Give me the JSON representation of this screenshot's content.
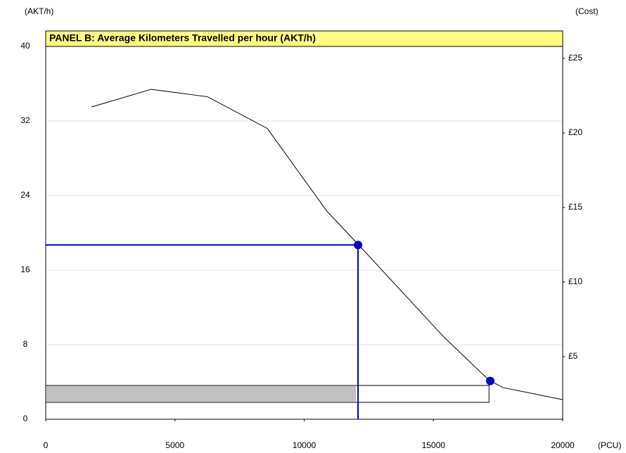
{
  "chart_data": {
    "type": "line",
    "title": "PANEL B: Average Kilometers Travelled per hour (AKT/h)",
    "y_label": "(AKT/h)",
    "y2_label": "(Cost)",
    "x_label": "(PCU)",
    "xlim": [
      0,
      20000
    ],
    "xticks": [
      0,
      5000,
      10000,
      15000,
      20000
    ],
    "ylim": [
      0,
      40
    ],
    "yticks": [
      0,
      8,
      16,
      24,
      32,
      40
    ],
    "y2lim": [
      0.8,
      25.8
    ],
    "y2ticks": [
      {
        "value": 5,
        "label": "£5"
      },
      {
        "value": 10,
        "label": "£10"
      },
      {
        "value": 15,
        "label": "£15"
      },
      {
        "value": 20,
        "label": "£20"
      },
      {
        "value": 25,
        "label": "£25"
      }
    ],
    "grid": true,
    "series": [
      {
        "color": "#000000",
        "x": [
          1769,
          4082,
          6259,
          8571,
          10884,
          12109,
          15374,
          17143,
          17687,
          20000
        ],
        "values": [
          33.5,
          35.4,
          34.6,
          31.2,
          22.3,
          18.7,
          8.9,
          4.2,
          3.4,
          2.1
        ]
      }
    ],
    "markers": {
      "color": "#0000cc",
      "x": [
        12082,
        17197
      ],
      "values": [
        18.7,
        4.1
      ]
    },
    "range_bar": {
      "filled_end": 12000,
      "end": 17150,
      "fill": "#c0c0c0"
    }
  }
}
